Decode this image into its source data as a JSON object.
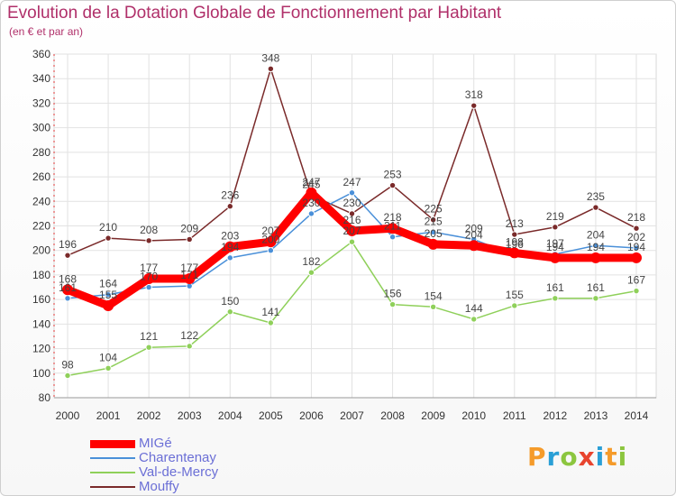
{
  "chart_data": {
    "type": "line",
    "title": "Evolution de la Dotation Globale de Fonctionnement par Habitant",
    "subtitle": "(en € et par an)",
    "xlabel": "",
    "ylabel": "",
    "ylim": [
      80,
      360
    ],
    "yticks": [
      80,
      100,
      120,
      140,
      160,
      180,
      200,
      220,
      240,
      260,
      280,
      300,
      320,
      340,
      360
    ],
    "categories": [
      "2000",
      "2001",
      "2002",
      "2003",
      "2004",
      "2005",
      "2006",
      "2007",
      "2008",
      "2009",
      "2010",
      "2011",
      "2012",
      "2013",
      "2014"
    ],
    "series": [
      {
        "name": "MIGé",
        "color": "#ff0000",
        "values": [
          168,
          155,
          177,
          177,
          203,
          207,
          247,
          216,
          218,
          205,
          204,
          198,
          194,
          194,
          194
        ]
      },
      {
        "name": "Charentenay",
        "color": "#4a90d9",
        "values": [
          161,
          164,
          170,
          171,
          194,
          200,
          230,
          247,
          211,
          215,
          209,
          196,
          197,
          204,
          202
        ]
      },
      {
        "name": "Val-de-Mercy",
        "color": "#8fd05a",
        "values": [
          98,
          104,
          121,
          122,
          150,
          141,
          182,
          207,
          156,
          154,
          144,
          155,
          161,
          161,
          167
        ]
      },
      {
        "name": "Mouffy",
        "color": "#7a2a2a",
        "values": [
          196,
          210,
          208,
          209,
          236,
          348,
          245,
          230,
          253,
          225,
          318,
          213,
          219,
          235,
          218
        ]
      }
    ],
    "data_labels": [
      [
        168,
        155,
        177,
        177,
        203,
        207,
        247,
        216,
        218,
        205,
        204,
        198,
        194,
        194,
        194
      ],
      [
        161,
        164,
        170,
        171,
        194,
        200,
        230,
        247,
        211,
        215,
        209,
        196,
        197,
        204,
        202
      ],
      [
        98,
        104,
        121,
        122,
        150,
        141,
        182,
        207,
        156,
        154,
        144,
        155,
        161,
        161,
        167
      ],
      [
        196,
        210,
        208,
        209,
        236,
        348,
        245,
        230,
        253,
        225,
        318,
        213,
        219,
        235,
        218
      ]
    ],
    "legend_position": "bottom-left",
    "grid": true
  },
  "brand": {
    "text": "Proxiti"
  }
}
